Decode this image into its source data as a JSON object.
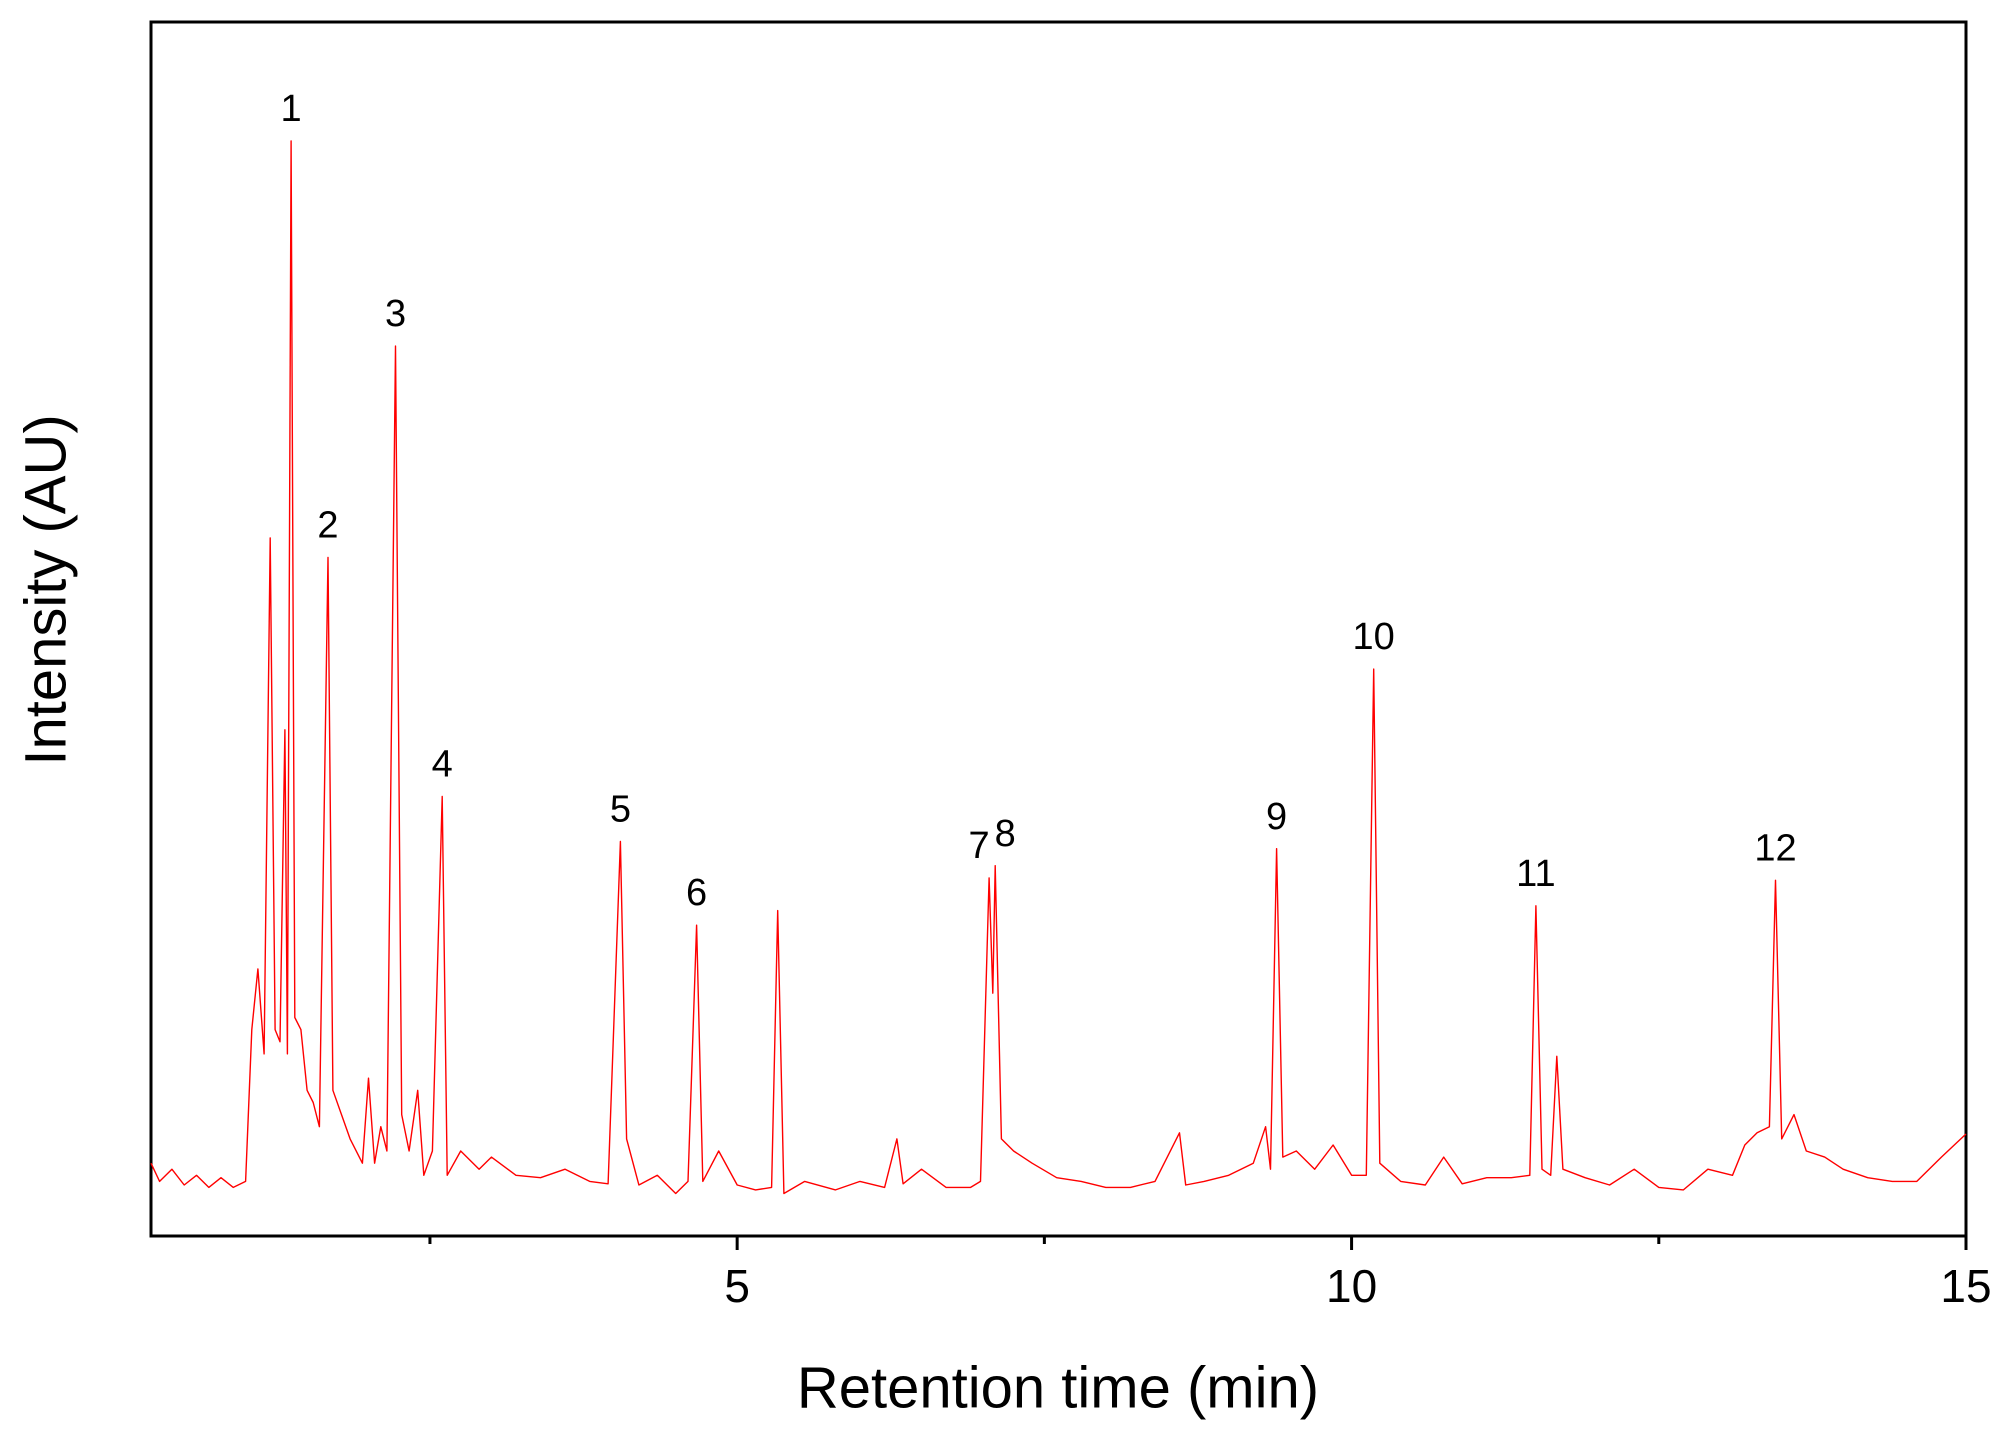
{
  "chart_data": {
    "type": "line",
    "x_label": "Retention time (min)",
    "y_label": "Intensity (AU)",
    "xlim": [
      0.23,
      15
    ],
    "ylim": [
      0,
      100
    ],
    "xticks": [
      5,
      10,
      15
    ],
    "xminorticks": [
      2.5,
      7.5,
      12.5
    ],
    "series": [
      {
        "color": "#ff0000",
        "x": [
          0.23,
          0.3,
          0.4,
          0.5,
          0.6,
          0.7,
          0.8,
          0.9,
          1.0,
          1.05,
          1.1,
          1.15,
          1.2,
          1.24,
          1.28,
          1.32,
          1.34,
          1.37,
          1.4,
          1.45,
          1.5,
          1.55,
          1.6,
          1.67,
          1.71,
          1.78,
          1.85,
          1.95,
          2.0,
          2.05,
          2.1,
          2.15,
          2.22,
          2.27,
          2.33,
          2.4,
          2.45,
          2.52,
          2.6,
          2.64,
          2.75,
          2.9,
          3.0,
          3.2,
          3.4,
          3.6,
          3.8,
          3.95,
          4.05,
          4.1,
          4.2,
          4.35,
          4.5,
          4.6,
          4.67,
          4.72,
          4.85,
          5.0,
          5.15,
          5.28,
          5.33,
          5.38,
          5.55,
          5.8,
          6.0,
          6.2,
          6.3,
          6.35,
          6.5,
          6.7,
          6.9,
          6.98,
          7.05,
          7.08,
          7.1,
          7.15,
          7.25,
          7.4,
          7.6,
          7.8,
          8.0,
          8.2,
          8.4,
          8.6,
          8.65,
          8.8,
          9.0,
          9.2,
          9.3,
          9.34,
          9.39,
          9.44,
          9.55,
          9.7,
          9.85,
          10.0,
          10.12,
          10.18,
          10.23,
          10.4,
          10.6,
          10.75,
          10.9,
          11.1,
          11.3,
          11.45,
          11.5,
          11.55,
          11.62,
          11.67,
          11.72,
          11.9,
          12.1,
          12.3,
          12.5,
          12.7,
          12.9,
          13.1,
          13.2,
          13.3,
          13.4,
          13.45,
          13.5,
          13.6,
          13.7,
          13.85,
          14.0,
          14.2,
          14.4,
          14.6,
          14.8,
          15.0
        ],
        "values": [
          6,
          4.5,
          5.5,
          4.2,
          5.0,
          4.0,
          4.8,
          4.0,
          4.5,
          17,
          22,
          15,
          57.5,
          17,
          16,
          41.7,
          15,
          90.2,
          18,
          17,
          12,
          11,
          9,
          55.9,
          12,
          10,
          8,
          6,
          13,
          6,
          9,
          7,
          73.3,
          10,
          7,
          12,
          5,
          7,
          36.2,
          5,
          7,
          5.5,
          6.5,
          5,
          4.8,
          5.5,
          4.5,
          4.3,
          32.5,
          8,
          4.2,
          5,
          3.5,
          4.5,
          25.6,
          4.5,
          7,
          4.2,
          3.8,
          4.0,
          26.8,
          3.5,
          4.5,
          3.8,
          4.5,
          4.0,
          8,
          4.3,
          5.5,
          4.0,
          4.0,
          4.5,
          29.5,
          20,
          30.5,
          8,
          7,
          6,
          4.8,
          4.5,
          4.0,
          4.0,
          4.5,
          8.5,
          4.2,
          4.5,
          5,
          6,
          9,
          5.5,
          31.9,
          6.5,
          7,
          5.5,
          7.5,
          5,
          5,
          46.7,
          6,
          4.5,
          4.2,
          6.5,
          4.3,
          4.8,
          4.8,
          5,
          27.2,
          5.5,
          5,
          14.8,
          5.5,
          4.8,
          4.2,
          5.5,
          4,
          3.8,
          5.5,
          5,
          7.5,
          8.5,
          9,
          29.3,
          8,
          10,
          7,
          6.5,
          5.5,
          4.8,
          4.5,
          4.5,
          6.5,
          8.4
        ]
      }
    ],
    "peak_labels": [
      {
        "text": "1",
        "x": 1.37,
        "y": 90.2
      },
      {
        "text": "2",
        "x": 1.67,
        "y": 55.9
      },
      {
        "text": "3",
        "x": 2.22,
        "y": 73.3
      },
      {
        "text": "4",
        "x": 2.6,
        "y": 36.2
      },
      {
        "text": "5",
        "x": 4.05,
        "y": 32.5
      },
      {
        "text": "6",
        "x": 4.67,
        "y": 25.6
      },
      {
        "text": "7",
        "x": 7.05,
        "y": 29.5
      },
      {
        "text": "8",
        "x": 7.1,
        "y": 30.5
      },
      {
        "text": "9",
        "x": 9.39,
        "y": 31.9
      },
      {
        "text": "10",
        "x": 10.18,
        "y": 46.7
      },
      {
        "text": "11",
        "x": 11.5,
        "y": 27.2
      },
      {
        "text": "12",
        "x": 13.45,
        "y": 29.3
      }
    ]
  }
}
